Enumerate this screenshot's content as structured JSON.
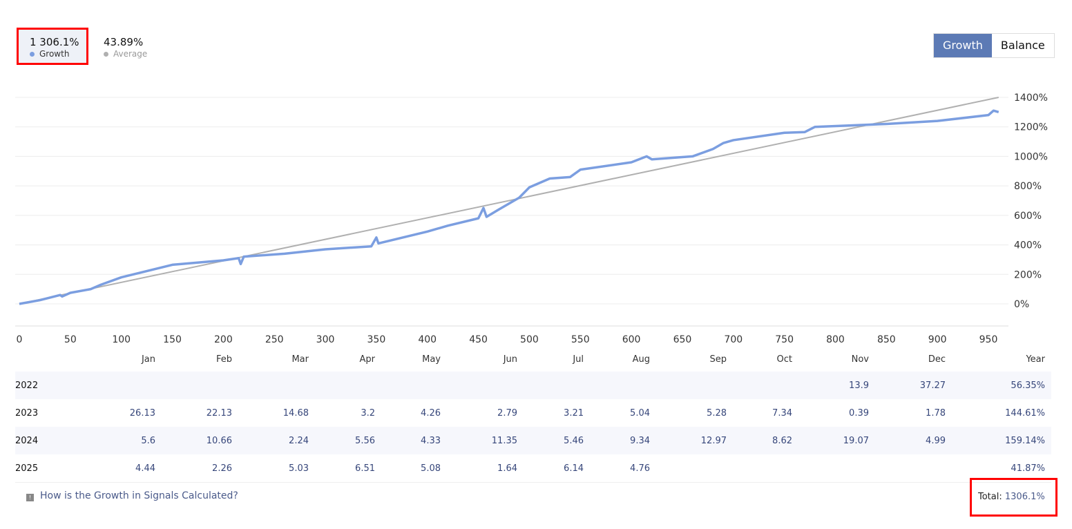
{
  "legend": {
    "growth_value": "1 306.1%",
    "growth_label": "Growth",
    "average_value": "43.89%",
    "average_label": "Average"
  },
  "toggle": {
    "growth": "Growth",
    "balance": "Balance"
  },
  "colors": {
    "growth": "#7b9ee0",
    "average": "#b0b0b0",
    "accent": "#5c7ab5"
  },
  "chart_data": {
    "type": "line",
    "xlim": [
      0,
      960
    ],
    "ylim": [
      -150,
      1400
    ],
    "x_ticks": [
      0,
      50,
      100,
      150,
      200,
      250,
      300,
      350,
      400,
      450,
      500,
      550,
      600,
      650,
      700,
      750,
      800,
      850,
      900,
      950
    ],
    "y_ticks": [
      0,
      200,
      400,
      600,
      800,
      1000,
      1200,
      1400
    ],
    "y_tick_labels": [
      "0%",
      "200%",
      "400%",
      "600%",
      "800%",
      "1000%",
      "1200%",
      "1400%"
    ],
    "series": [
      {
        "name": "Growth",
        "x": [
          0,
          20,
          40,
          42,
          50,
          70,
          80,
          100,
          150,
          200,
          215,
          217,
          220,
          260,
          300,
          345,
          350,
          352,
          400,
          420,
          450,
          455,
          458,
          470,
          490,
          500,
          520,
          540,
          550,
          600,
          615,
          620,
          660,
          680,
          690,
          700,
          750,
          770,
          780,
          850,
          900,
          950,
          955,
          960
        ],
        "y": [
          0,
          25,
          60,
          50,
          75,
          100,
          130,
          180,
          265,
          295,
          310,
          270,
          320,
          340,
          370,
          390,
          450,
          410,
          490,
          530,
          580,
          650,
          590,
          640,
          720,
          790,
          850,
          860,
          910,
          960,
          1000,
          980,
          1000,
          1050,
          1090,
          1110,
          1160,
          1165,
          1200,
          1220,
          1240,
          1280,
          1310,
          1300
        ]
      },
      {
        "name": "Average",
        "x": [
          0,
          960
        ],
        "y": [
          0,
          1400
        ]
      }
    ]
  },
  "table": {
    "headers": [
      "",
      "Jan",
      "Feb",
      "Mar",
      "Apr",
      "May",
      "Jun",
      "Jul",
      "Aug",
      "Sep",
      "Oct",
      "Nov",
      "Dec",
      "Year"
    ],
    "rows": [
      [
        "2022",
        "",
        "",
        "",
        "",
        "",
        "",
        "",
        "",
        "",
        "",
        "13.9",
        "37.27",
        "56.35%"
      ],
      [
        "2023",
        "26.13",
        "22.13",
        "14.68",
        "3.2",
        "4.26",
        "2.79",
        "3.21",
        "5.04",
        "5.28",
        "7.34",
        "0.39",
        "1.78",
        "144.61%"
      ],
      [
        "2024",
        "5.6",
        "10.66",
        "2.24",
        "5.56",
        "4.33",
        "11.35",
        "5.46",
        "9.34",
        "12.97",
        "8.62",
        "19.07",
        "4.99",
        "159.14%"
      ],
      [
        "2025",
        "4.44",
        "2.26",
        "5.03",
        "6.51",
        "5.08",
        "1.64",
        "6.14",
        "4.76",
        "",
        "",
        "",
        "",
        "41.87%"
      ]
    ]
  },
  "footer": {
    "help_link": "How is the Growth in Signals Calculated?",
    "total_label": "Total:",
    "total_value": "1306.1%"
  }
}
